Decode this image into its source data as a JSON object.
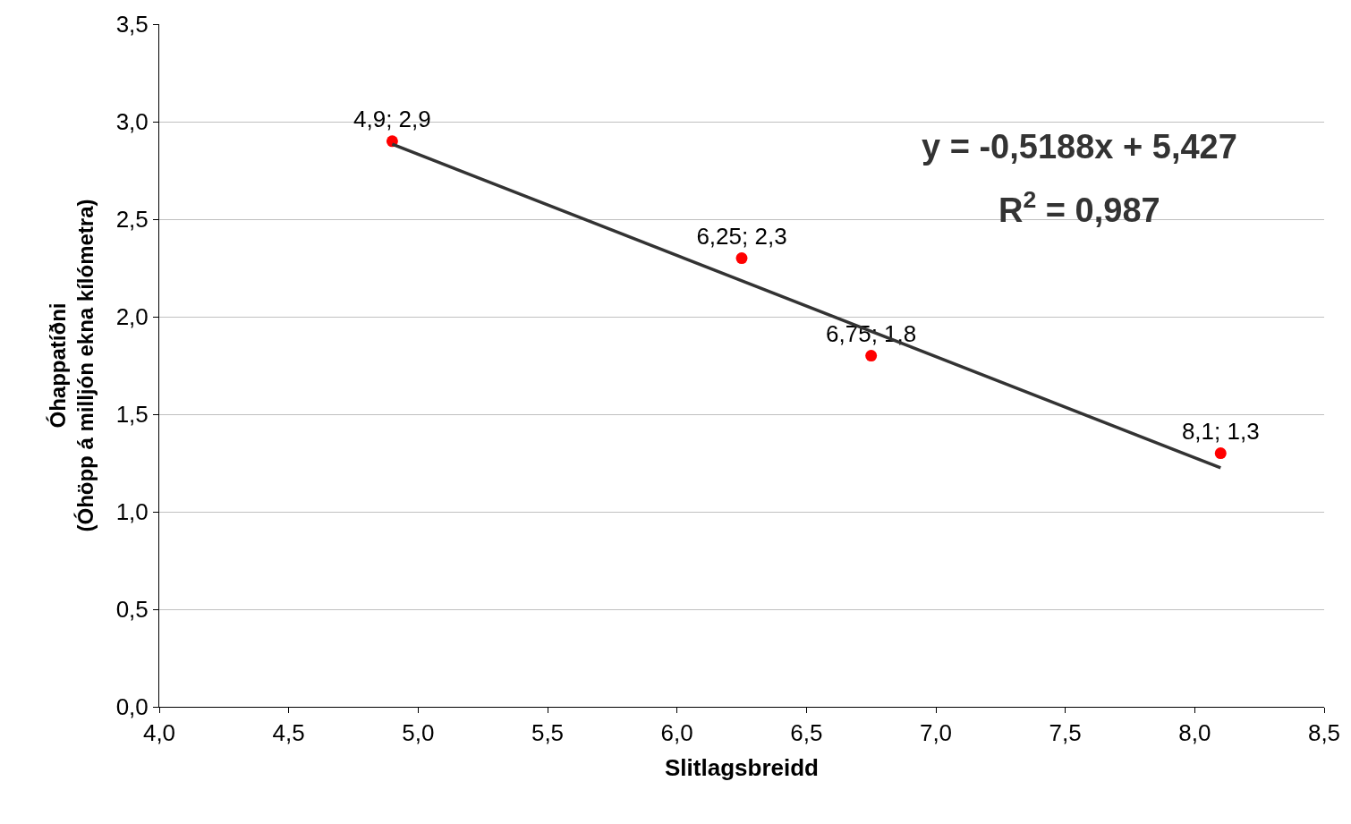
{
  "chart_data": {
    "type": "scatter",
    "xlabel": "Slitlagsbreidd",
    "ylabel": "Óhappatíðni\n(Óhöpp á milljón ekna kílómetra)",
    "series": [
      {
        "color": "#ff0000",
        "marker": "circle",
        "x": [
          4.9,
          6.25,
          6.75,
          8.1
        ],
        "values": [
          2.9,
          2.3,
          1.8,
          1.3
        ],
        "value_labels": [
          "4,9; 2,9",
          "6,25; 2,3",
          "6,75; 1,8",
          "8,1; 1,3"
        ]
      },
      {
        "type": "line",
        "color": "#333333",
        "marker": "none",
        "line_style": "solid",
        "x": [
          4.9,
          8.1
        ],
        "values": [
          2.885,
          1.225
        ]
      }
    ],
    "annotations": [
      "y = -0,5188x + 5,427",
      "R$^{2}$ = 0,987"
    ],
    "xlim": [
      4.0,
      8.5
    ],
    "xticks": [
      {
        "value": 4.0,
        "label": "4,0"
      },
      {
        "value": 4.5,
        "label": "4,5"
      },
      {
        "value": 5.0,
        "label": "5,0"
      },
      {
        "value": 5.5,
        "label": "5,5"
      },
      {
        "value": 6.0,
        "label": "6,0"
      },
      {
        "value": 6.5,
        "label": "6,5"
      },
      {
        "value": 7.0,
        "label": "7,0"
      },
      {
        "value": 7.5,
        "label": "7,5"
      },
      {
        "value": 8.0,
        "label": "8,0"
      },
      {
        "value": 8.5,
        "label": "8,5"
      }
    ],
    "ylim": [
      0.0,
      3.5
    ],
    "yticks": [
      {
        "value": 0.0,
        "label": "0,0"
      },
      {
        "value": 0.5,
        "label": "0,5"
      },
      {
        "value": 1.0,
        "label": "1,0"
      },
      {
        "value": 1.5,
        "label": "1,5"
      },
      {
        "value": 2.0,
        "label": "2,0"
      },
      {
        "value": 2.5,
        "label": "2,5"
      },
      {
        "value": 3.0,
        "label": "3,0"
      },
      {
        "value": 3.5,
        "label": "3,5"
      }
    ],
    "grid": "y"
  }
}
